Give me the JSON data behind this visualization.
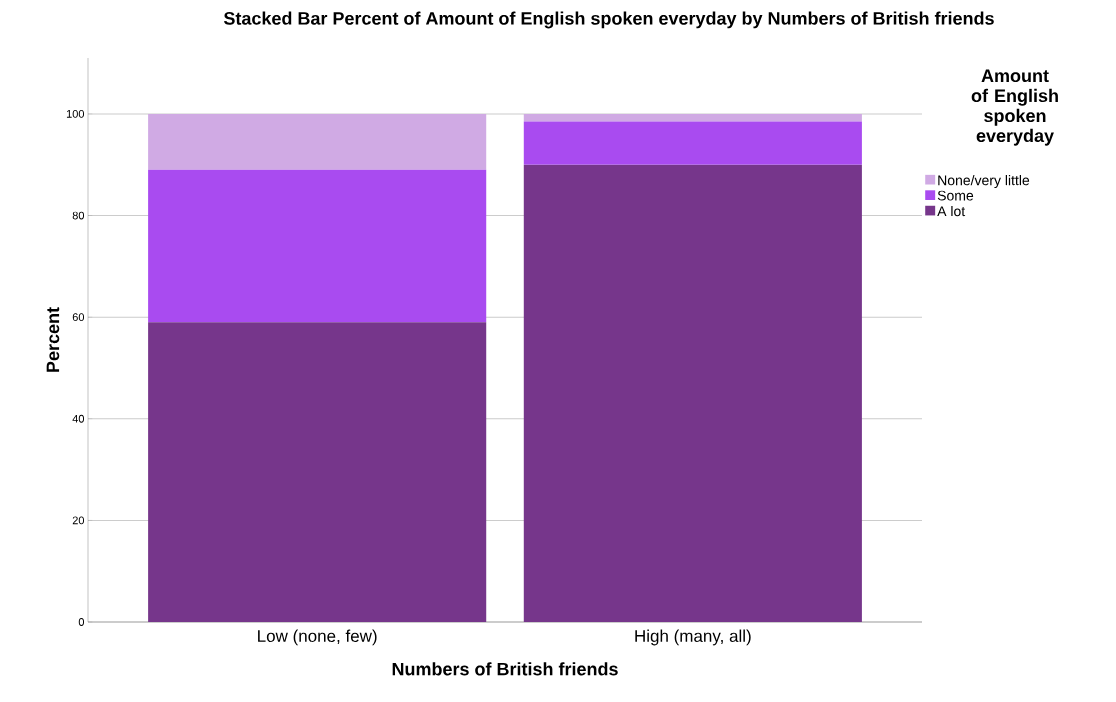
{
  "chart_data": {
    "type": "bar",
    "stacked": true,
    "title": "Stacked Bar Percent of Amount of English spoken everyday by Numbers of British friends",
    "xlabel": "Numbers of British friends",
    "ylabel": "Percent",
    "legend_title": "Amount of English spoken everyday",
    "categories": [
      "Low (none, few)",
      "High (many, all)"
    ],
    "series": [
      {
        "name": "A lot",
        "color": "#76368b",
        "values": [
          59,
          90
        ]
      },
      {
        "name": "Some",
        "color": "#a94bf0",
        "values": [
          30,
          8.5
        ]
      },
      {
        "name": "None/very little",
        "color": "#d0aae4",
        "values": [
          11,
          1.5
        ]
      }
    ],
    "ylim": [
      0,
      111
    ],
    "yticks": [
      0,
      20,
      40,
      60,
      80,
      100
    ],
    "grid": "y",
    "legend": "right"
  }
}
